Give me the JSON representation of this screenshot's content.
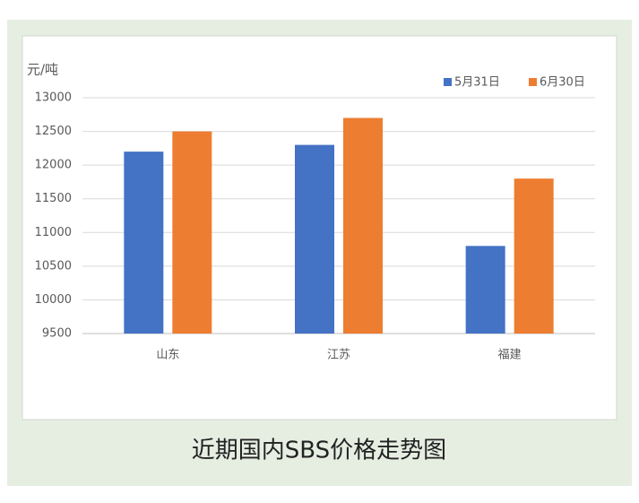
{
  "chart_data": {
    "type": "bar",
    "caption": "近期国内SBS价格走势图",
    "y_unit": "元/吨",
    "categories": [
      "山东",
      "江苏",
      "福建"
    ],
    "series": [
      {
        "name": "5月31日",
        "color": "#4472c4",
        "values": [
          12200,
          12300,
          10800
        ]
      },
      {
        "name": "6月30日",
        "color": "#ed7d31",
        "values": [
          12500,
          12700,
          11800
        ]
      }
    ],
    "ylim": [
      9500,
      13000
    ],
    "yticks": [
      9500,
      10000,
      10500,
      11000,
      11500,
      12000,
      12500,
      13000
    ],
    "grid": true,
    "legend": "top-right"
  }
}
